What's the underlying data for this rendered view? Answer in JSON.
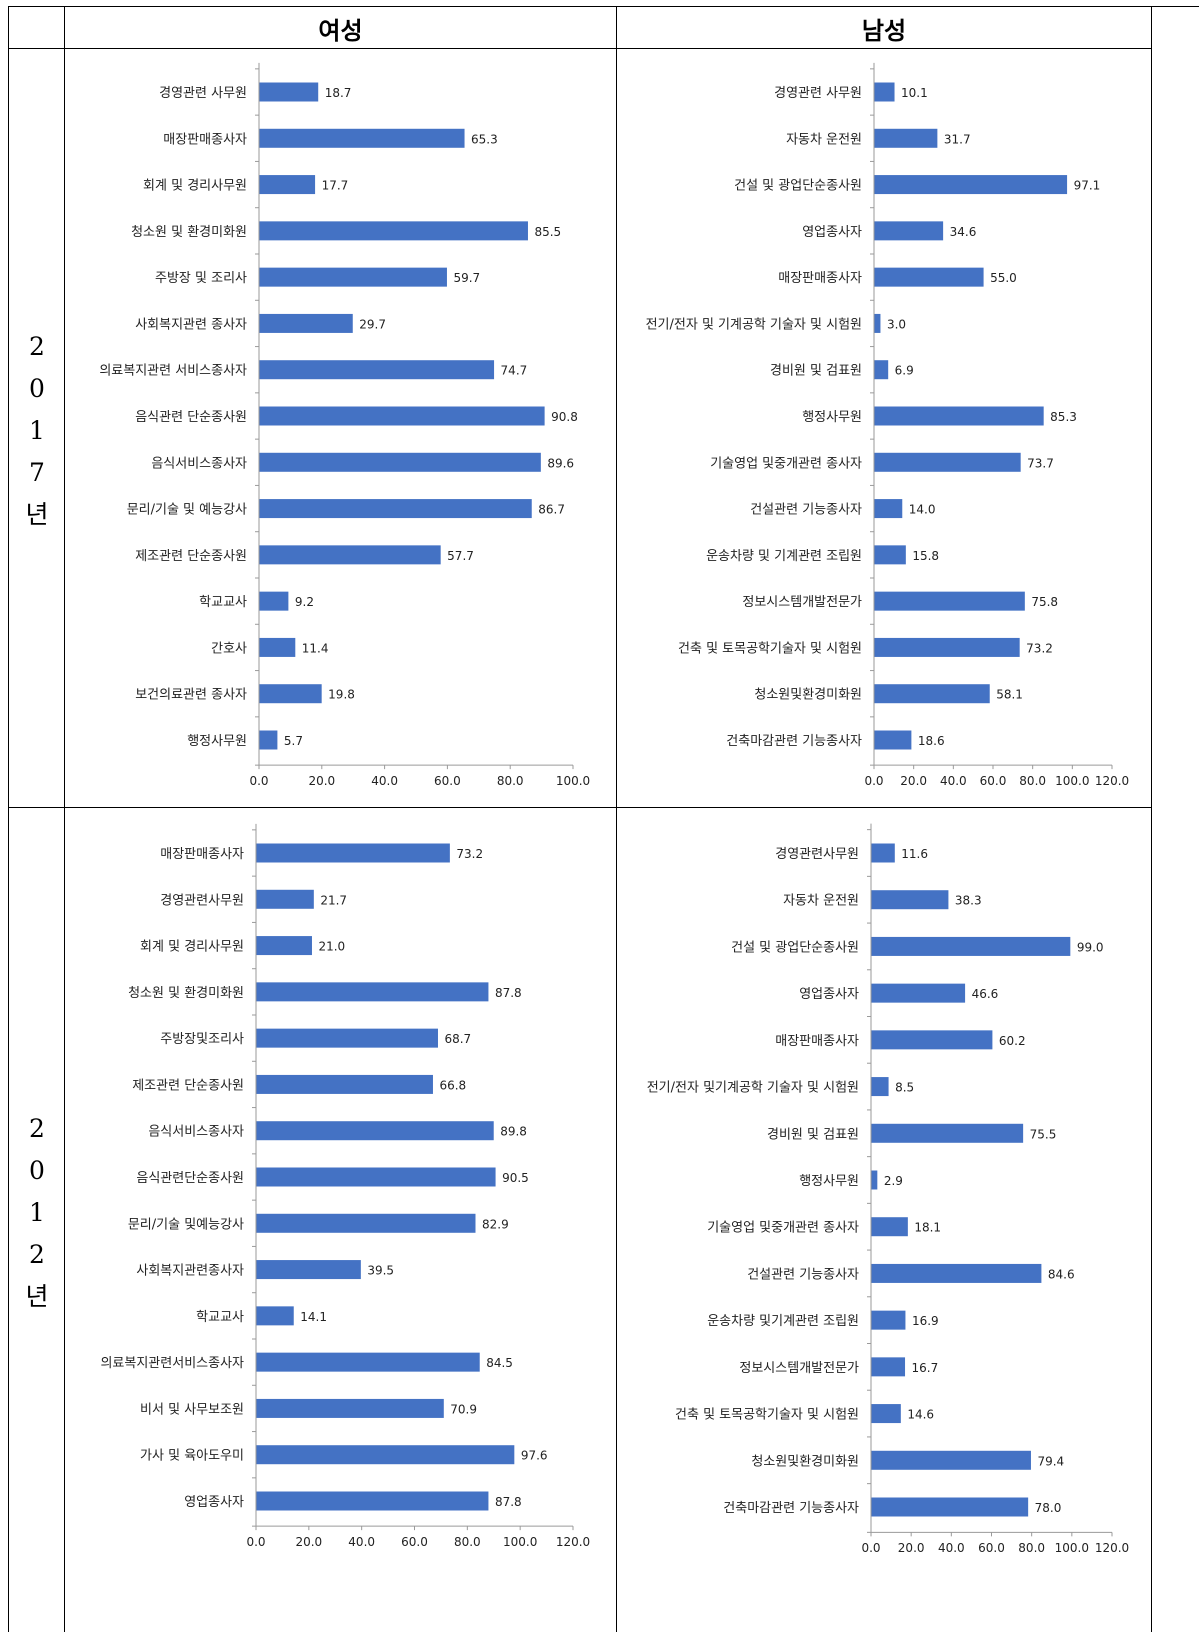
{
  "headers": {
    "female": "여성",
    "male": "남성"
  },
  "rows": [
    {
      "year_label": [
        "2",
        "0",
        "1",
        "7",
        "년"
      ]
    },
    {
      "year_label": [
        "2",
        "0",
        "1",
        "2",
        "년"
      ]
    }
  ],
  "colors": {
    "bar": "#4472C4",
    "axis": "#9a9a9a"
  },
  "chart_data": [
    {
      "type": "bar",
      "orientation": "horizontal",
      "group": "2017 여성",
      "categories": [
        "경영관련 사무원",
        "매장판매종사자",
        "회계 및 경리사무원",
        "청소원 및 환경미화원",
        "주방장 및 조리사",
        "사회복지관련 종사자",
        "의료복지관련 서비스종사자",
        "음식관련 단순종사원",
        "음식서비스종사자",
        "문리/기술 및 예능강사",
        "제조관련 단순종사원",
        "학교교사",
        "간호사",
        "보건의료관련 종사자",
        "행정사무원"
      ],
      "values": [
        18.7,
        65.3,
        17.7,
        85.5,
        59.7,
        29.7,
        74.7,
        90.8,
        89.6,
        86.7,
        57.7,
        9.2,
        11.4,
        19.8,
        5.7
      ],
      "xlim": [
        0,
        100
      ],
      "ticks": [
        "0.0",
        "20.0",
        "40.0",
        "60.0",
        "80.0",
        "100.0"
      ]
    },
    {
      "type": "bar",
      "orientation": "horizontal",
      "group": "2017 남성",
      "categories": [
        "경영관련 사무원",
        "자동차 운전원",
        "건설 및 광업단순종사원",
        "영업종사자",
        "매장판매종사자",
        "전기/전자 및 기계공학 기술자 및 시험원",
        "경비원 및 검표원",
        "행정사무원",
        "기술영업 및중개관련 종사자",
        "건설관련 기능종사자",
        "운송차량 및 기계관련 조립원",
        "정보시스템개발전문가",
        "건축 및 토목공학기술자 및 시험원",
        "청소원및환경미화원",
        "건축마감관련 기능종사자"
      ],
      "values": [
        10.1,
        31.7,
        97.1,
        34.6,
        55.0,
        3.0,
        6.9,
        85.3,
        73.7,
        14.0,
        15.8,
        75.8,
        73.2,
        58.1,
        18.6
      ],
      "xlim": [
        0,
        120
      ],
      "ticks": [
        "0.0",
        "20.0",
        "40.0",
        "60.0",
        "80.0",
        "100.0",
        "120.0"
      ]
    },
    {
      "type": "bar",
      "orientation": "horizontal",
      "group": "2012 여성",
      "categories": [
        "매장판매종사자",
        "경영관련사무원",
        "회계 및 경리사무원",
        "청소원 및 환경미화원",
        "주방장및조리사",
        "제조관련 단순종사원",
        "음식서비스종사자",
        "음식관련단순종사원",
        "문리/기술 및예능강사",
        "사회복지관련종사자",
        "학교교사",
        "의료복지관련서비스종사자",
        "비서 및 사무보조원",
        "가사 및 육아도우미",
        "영업종사자"
      ],
      "values": [
        73.2,
        21.7,
        21.0,
        87.8,
        68.7,
        66.8,
        89.8,
        90.5,
        82.9,
        39.5,
        14.1,
        84.5,
        70.9,
        97.6,
        87.8
      ],
      "xlim": [
        0,
        120
      ],
      "ticks": [
        "0.0",
        "20.0",
        "40.0",
        "60.0",
        "80.0",
        "100.0",
        "120.0"
      ]
    },
    {
      "type": "bar",
      "orientation": "horizontal",
      "group": "2012 남성",
      "categories": [
        "경영관련사무원",
        "자동차 운전원",
        "건설 및 광업단순종사원",
        "영업종사자",
        "매장판매종사자",
        "전기/전자 및기계공학 기술자 및 시험원",
        "경비원 및 검표원",
        "행정사무원",
        "기술영업 및중개관련 종사자",
        "건설관련 기능종사자",
        "운송차량 및기계관련 조립원",
        "정보시스템개발전문가",
        "건축 및 토목공학기술자 및 시험원",
        "청소원및환경미화원",
        "건축마감관련 기능종사자"
      ],
      "values": [
        11.6,
        38.3,
        99.0,
        46.6,
        60.2,
        8.5,
        75.5,
        2.9,
        18.1,
        84.6,
        16.9,
        16.7,
        14.6,
        79.4,
        78.0
      ],
      "xlim": [
        0,
        120
      ],
      "ticks": [
        "0.0",
        "20.0",
        "40.0",
        "60.0",
        "80.0",
        "100.0",
        "120.0"
      ]
    }
  ]
}
